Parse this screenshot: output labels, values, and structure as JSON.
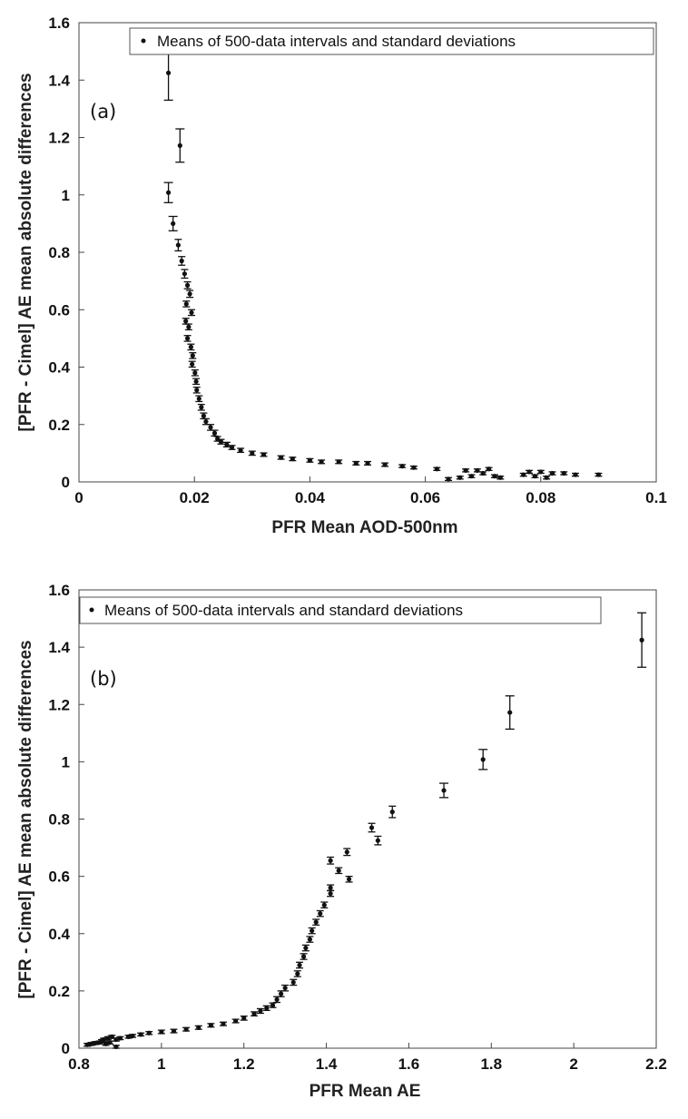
{
  "chart_data": [
    {
      "type": "scatter",
      "panel_label": "(a)",
      "xlabel": "PFR Mean AOD-500nm",
      "ylabel": "[PFR - Cimel]  AE mean absolute differences",
      "xlim": [
        0,
        0.1
      ],
      "ylim": [
        0,
        1.6
      ],
      "xticks": [
        "0",
        "0.02",
        "0.04",
        "0.06",
        "0.08",
        "0.1"
      ],
      "yticks": [
        "0",
        "0.2",
        "0.4",
        "0.6",
        "0.8",
        "1",
        "1.2",
        "1.4",
        "1.6"
      ],
      "grid": false,
      "legend_position": "top-right",
      "series": [
        {
          "name": "Means of 500-data intervals and standard deviations",
          "points": [
            {
              "x": 0.0155,
              "y": 1.425,
              "yerr": 0.095
            },
            {
              "x": 0.0175,
              "y": 1.172,
              "yerr": 0.058
            },
            {
              "x": 0.0155,
              "y": 1.008,
              "yerr": 0.035
            },
            {
              "x": 0.0163,
              "y": 0.9,
              "yerr": 0.025
            },
            {
              "x": 0.0172,
              "y": 0.825,
              "yerr": 0.02
            },
            {
              "x": 0.0178,
              "y": 0.77,
              "yerr": 0.015
            },
            {
              "x": 0.0183,
              "y": 0.725,
              "yerr": 0.015
            },
            {
              "x": 0.0188,
              "y": 0.685,
              "yerr": 0.012
            },
            {
              "x": 0.0192,
              "y": 0.655,
              "yerr": 0.012
            },
            {
              "x": 0.0186,
              "y": 0.62,
              "yerr": 0.01
            },
            {
              "x": 0.0195,
              "y": 0.59,
              "yerr": 0.01
            },
            {
              "x": 0.0185,
              "y": 0.56,
              "yerr": 0.01
            },
            {
              "x": 0.019,
              "y": 0.54,
              "yerr": 0.01
            },
            {
              "x": 0.0188,
              "y": 0.5,
              "yerr": 0.01
            },
            {
              "x": 0.0194,
              "y": 0.47,
              "yerr": 0.01
            },
            {
              "x": 0.0197,
              "y": 0.44,
              "yerr": 0.01
            },
            {
              "x": 0.0196,
              "y": 0.41,
              "yerr": 0.01
            },
            {
              "x": 0.0201,
              "y": 0.38,
              "yerr": 0.01
            },
            {
              "x": 0.0203,
              "y": 0.35,
              "yerr": 0.01
            },
            {
              "x": 0.0204,
              "y": 0.32,
              "yerr": 0.01
            },
            {
              "x": 0.0208,
              "y": 0.29,
              "yerr": 0.01
            },
            {
              "x": 0.0212,
              "y": 0.26,
              "yerr": 0.01
            },
            {
              "x": 0.0216,
              "y": 0.23,
              "yerr": 0.01
            },
            {
              "x": 0.022,
              "y": 0.21,
              "yerr": 0.01
            },
            {
              "x": 0.0228,
              "y": 0.19,
              "yerr": 0.01
            },
            {
              "x": 0.0235,
              "y": 0.17,
              "yerr": 0.01
            },
            {
              "x": 0.024,
              "y": 0.15,
              "yerr": 0.008
            },
            {
              "x": 0.0246,
              "y": 0.14,
              "yerr": 0.008
            },
            {
              "x": 0.0256,
              "y": 0.13,
              "yerr": 0.008
            },
            {
              "x": 0.0265,
              "y": 0.12,
              "yerr": 0.007
            },
            {
              "x": 0.028,
              "y": 0.11,
              "yerr": 0.007
            },
            {
              "x": 0.03,
              "y": 0.1,
              "yerr": 0.007
            },
            {
              "x": 0.032,
              "y": 0.095,
              "yerr": 0.006
            },
            {
              "x": 0.035,
              "y": 0.085,
              "yerr": 0.006
            },
            {
              "x": 0.037,
              "y": 0.08,
              "yerr": 0.006
            },
            {
              "x": 0.04,
              "y": 0.075,
              "yerr": 0.006
            },
            {
              "x": 0.042,
              "y": 0.07,
              "yerr": 0.006
            },
            {
              "x": 0.045,
              "y": 0.07,
              "yerr": 0.006
            },
            {
              "x": 0.048,
              "y": 0.065,
              "yerr": 0.006
            },
            {
              "x": 0.05,
              "y": 0.065,
              "yerr": 0.006
            },
            {
              "x": 0.053,
              "y": 0.06,
              "yerr": 0.006
            },
            {
              "x": 0.056,
              "y": 0.055,
              "yerr": 0.005
            },
            {
              "x": 0.058,
              "y": 0.05,
              "yerr": 0.005
            },
            {
              "x": 0.062,
              "y": 0.045,
              "yerr": 0.005
            },
            {
              "x": 0.064,
              "y": 0.01,
              "yerr": 0.005
            },
            {
              "x": 0.066,
              "y": 0.015,
              "yerr": 0.005
            },
            {
              "x": 0.067,
              "y": 0.04,
              "yerr": 0.005
            },
            {
              "x": 0.068,
              "y": 0.02,
              "yerr": 0.005
            },
            {
              "x": 0.069,
              "y": 0.04,
              "yerr": 0.005
            },
            {
              "x": 0.07,
              "y": 0.03,
              "yerr": 0.005
            },
            {
              "x": 0.071,
              "y": 0.045,
              "yerr": 0.005
            },
            {
              "x": 0.072,
              "y": 0.02,
              "yerr": 0.005
            },
            {
              "x": 0.073,
              "y": 0.015,
              "yerr": 0.005
            },
            {
              "x": 0.077,
              "y": 0.025,
              "yerr": 0.005
            },
            {
              "x": 0.078,
              "y": 0.035,
              "yerr": 0.005
            },
            {
              "x": 0.079,
              "y": 0.02,
              "yerr": 0.005
            },
            {
              "x": 0.08,
              "y": 0.035,
              "yerr": 0.005
            },
            {
              "x": 0.081,
              "y": 0.015,
              "yerr": 0.005
            },
            {
              "x": 0.082,
              "y": 0.03,
              "yerr": 0.005
            },
            {
              "x": 0.084,
              "y": 0.03,
              "yerr": 0.005
            },
            {
              "x": 0.086,
              "y": 0.025,
              "yerr": 0.005
            },
            {
              "x": 0.09,
              "y": 0.025,
              "yerr": 0.005
            }
          ]
        }
      ]
    },
    {
      "type": "scatter",
      "panel_label": "(b)",
      "xlabel": "PFR Mean AE",
      "ylabel": "[PFR - Cimel]  AE mean absolute differences",
      "xlim": [
        0.8,
        2.2
      ],
      "ylim": [
        0,
        1.6
      ],
      "xticks": [
        "0.8",
        "1",
        "1.2",
        "1.4",
        "1.6",
        "1.8",
        "2",
        "2.2"
      ],
      "yticks": [
        "0",
        "0.2",
        "0.4",
        "0.6",
        "0.8",
        "1",
        "1.2",
        "1.4",
        "1.6"
      ],
      "grid": false,
      "legend_position": "top-left",
      "series": [
        {
          "name": "Means of 500-data intervals and standard deviations",
          "points": [
            {
              "x": 2.165,
              "y": 1.425,
              "yerr": 0.095
            },
            {
              "x": 1.845,
              "y": 1.172,
              "yerr": 0.058
            },
            {
              "x": 1.78,
              "y": 1.008,
              "yerr": 0.035
            },
            {
              "x": 1.685,
              "y": 0.9,
              "yerr": 0.025
            },
            {
              "x": 1.56,
              "y": 0.825,
              "yerr": 0.02
            },
            {
              "x": 1.51,
              "y": 0.77,
              "yerr": 0.015
            },
            {
              "x": 1.525,
              "y": 0.725,
              "yerr": 0.015
            },
            {
              "x": 1.45,
              "y": 0.685,
              "yerr": 0.012
            },
            {
              "x": 1.41,
              "y": 0.655,
              "yerr": 0.012
            },
            {
              "x": 1.43,
              "y": 0.62,
              "yerr": 0.01
            },
            {
              "x": 1.455,
              "y": 0.59,
              "yerr": 0.01
            },
            {
              "x": 1.41,
              "y": 0.56,
              "yerr": 0.01
            },
            {
              "x": 1.41,
              "y": 0.54,
              "yerr": 0.01
            },
            {
              "x": 1.395,
              "y": 0.5,
              "yerr": 0.01
            },
            {
              "x": 1.385,
              "y": 0.47,
              "yerr": 0.01
            },
            {
              "x": 1.375,
              "y": 0.44,
              "yerr": 0.01
            },
            {
              "x": 1.365,
              "y": 0.41,
              "yerr": 0.01
            },
            {
              "x": 1.36,
              "y": 0.38,
              "yerr": 0.01
            },
            {
              "x": 1.35,
              "y": 0.35,
              "yerr": 0.01
            },
            {
              "x": 1.345,
              "y": 0.32,
              "yerr": 0.01
            },
            {
              "x": 1.335,
              "y": 0.29,
              "yerr": 0.01
            },
            {
              "x": 1.33,
              "y": 0.26,
              "yerr": 0.01
            },
            {
              "x": 1.32,
              "y": 0.23,
              "yerr": 0.01
            },
            {
              "x": 1.3,
              "y": 0.21,
              "yerr": 0.01
            },
            {
              "x": 1.29,
              "y": 0.19,
              "yerr": 0.01
            },
            {
              "x": 1.28,
              "y": 0.17,
              "yerr": 0.01
            },
            {
              "x": 1.27,
              "y": 0.15,
              "yerr": 0.008
            },
            {
              "x": 1.255,
              "y": 0.14,
              "yerr": 0.008
            },
            {
              "x": 1.24,
              "y": 0.13,
              "yerr": 0.008
            },
            {
              "x": 1.225,
              "y": 0.12,
              "yerr": 0.007
            },
            {
              "x": 1.2,
              "y": 0.105,
              "yerr": 0.007
            },
            {
              "x": 1.18,
              "y": 0.095,
              "yerr": 0.006
            },
            {
              "x": 1.15,
              "y": 0.085,
              "yerr": 0.006
            },
            {
              "x": 1.12,
              "y": 0.08,
              "yerr": 0.006
            },
            {
              "x": 1.09,
              "y": 0.072,
              "yerr": 0.006
            },
            {
              "x": 1.06,
              "y": 0.066,
              "yerr": 0.006
            },
            {
              "x": 1.03,
              "y": 0.06,
              "yerr": 0.006
            },
            {
              "x": 1.0,
              "y": 0.057,
              "yerr": 0.006
            },
            {
              "x": 0.97,
              "y": 0.053,
              "yerr": 0.005
            },
            {
              "x": 0.95,
              "y": 0.048,
              "yerr": 0.005
            },
            {
              "x": 0.93,
              "y": 0.043,
              "yerr": 0.005
            },
            {
              "x": 0.92,
              "y": 0.04,
              "yerr": 0.005
            },
            {
              "x": 0.9,
              "y": 0.035,
              "yerr": 0.005
            },
            {
              "x": 0.89,
              "y": 0.03,
              "yerr": 0.005
            },
            {
              "x": 0.88,
              "y": 0.04,
              "yerr": 0.005
            },
            {
              "x": 0.875,
              "y": 0.02,
              "yerr": 0.005
            },
            {
              "x": 0.87,
              "y": 0.035,
              "yerr": 0.005
            },
            {
              "x": 0.865,
              "y": 0.015,
              "yerr": 0.005
            },
            {
              "x": 0.86,
              "y": 0.03,
              "yerr": 0.005
            },
            {
              "x": 0.89,
              "y": 0.005,
              "yerr": 0.005
            },
            {
              "x": 0.855,
              "y": 0.025,
              "yerr": 0.005
            },
            {
              "x": 0.85,
              "y": 0.02,
              "yerr": 0.005
            },
            {
              "x": 0.84,
              "y": 0.018,
              "yerr": 0.005
            },
            {
              "x": 0.83,
              "y": 0.015,
              "yerr": 0.005
            },
            {
              "x": 0.82,
              "y": 0.012,
              "yerr": 0.005
            }
          ]
        }
      ]
    }
  ]
}
